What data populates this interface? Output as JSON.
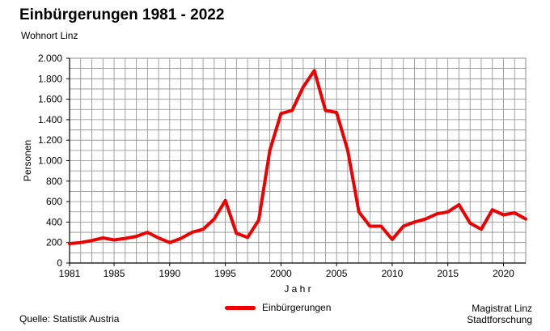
{
  "header": {
    "title": "Einbürgerungen 1981 - 2022",
    "subtitle": "Wohnort Linz"
  },
  "footer": {
    "source": "Quelle: Statistik Austria",
    "credit_line1": "Magistrat Linz",
    "credit_line2": "Stadtforschung"
  },
  "colors": {
    "series": "#ee0000",
    "grid": "#8c8c8c",
    "axis": "#000000"
  },
  "chart_data": {
    "type": "line",
    "title": "Einbürgerungen 1981 - 2022",
    "subtitle": "Wohnort Linz",
    "xlabel": "J a h r",
    "ylabel": "Personen",
    "xlim": [
      1981,
      2022
    ],
    "ylim": [
      0,
      2000
    ],
    "grid": true,
    "legend_position": "bottom",
    "x_ticks": [
      1981,
      1985,
      1990,
      1995,
      2000,
      2005,
      2010,
      2015,
      2020
    ],
    "x_tick_labels": [
      "1981",
      "1985",
      "1990",
      "1995",
      "2000",
      "2005",
      "2010",
      "2015",
      "2020"
    ],
    "y_ticks": [
      0,
      200,
      400,
      600,
      800,
      1000,
      1200,
      1400,
      1600,
      1800,
      2000
    ],
    "y_tick_labels": [
      "0",
      "200",
      "400",
      "600",
      "800",
      "1.000",
      "1.200",
      "1.400",
      "1.600",
      "1.800",
      "2.000"
    ],
    "x": [
      1981,
      1982,
      1983,
      1984,
      1985,
      1986,
      1987,
      1988,
      1989,
      1990,
      1991,
      1992,
      1993,
      1994,
      1995,
      1996,
      1997,
      1998,
      1999,
      2000,
      2001,
      2002,
      2003,
      2004,
      2005,
      2006,
      2007,
      2008,
      2009,
      2010,
      2011,
      2012,
      2013,
      2014,
      2015,
      2016,
      2017,
      2018,
      2019,
      2020,
      2021,
      2022
    ],
    "series": [
      {
        "name": "Einbürgerungen",
        "values": [
          190,
          200,
          220,
          245,
          225,
          240,
          260,
          300,
          245,
          200,
          240,
          300,
          330,
          430,
          610,
          290,
          250,
          420,
          1100,
          1460,
          1490,
          1720,
          1880,
          1490,
          1470,
          1100,
          500,
          360,
          360,
          230,
          360,
          400,
          430,
          480,
          500,
          570,
          390,
          330,
          520,
          470,
          490,
          430
        ]
      }
    ]
  }
}
